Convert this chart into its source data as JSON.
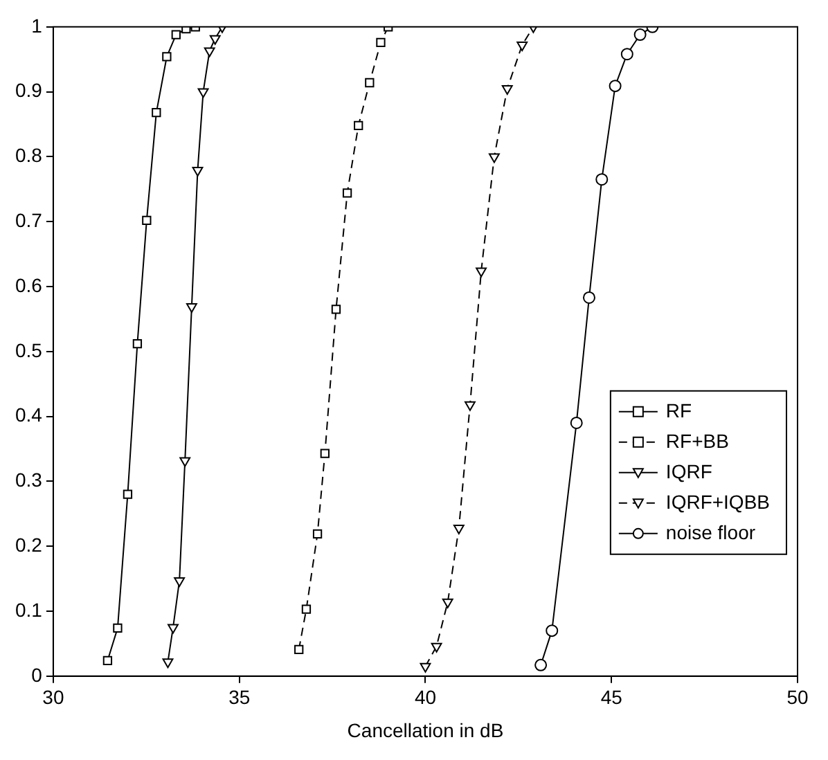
{
  "chart_data": {
    "type": "line",
    "xlabel": "Cancellation in dB",
    "xlim": [
      30,
      50
    ],
    "xticks": [
      30,
      35,
      40,
      45,
      50
    ],
    "ylim": [
      0,
      1
    ],
    "yticks": [
      0,
      0.1,
      0.2,
      0.3,
      0.4,
      0.5,
      0.6,
      0.7,
      0.8,
      0.9,
      1
    ],
    "grid": false,
    "legend": "bottom right",
    "series": [
      {
        "name": "RF",
        "color": "#000000",
        "marker": "square",
        "line_style": "solid",
        "x": [
          31.46,
          31.73,
          32.0,
          32.26,
          32.51,
          32.77,
          33.05,
          33.3,
          33.57,
          33.82
        ],
        "values": [
          0.024,
          0.074,
          0.28,
          0.512,
          0.702,
          0.868,
          0.954,
          0.988,
          0.997,
          1.0
        ]
      },
      {
        "name": "RF+BB",
        "color": "#000000",
        "marker": "square",
        "line_style": "dashed",
        "x": [
          36.6,
          36.8,
          37.1,
          37.3,
          37.6,
          37.9,
          38.2,
          38.5,
          38.8,
          39.0
        ],
        "values": [
          0.041,
          0.103,
          0.219,
          0.343,
          0.565,
          0.744,
          0.848,
          0.914,
          0.976,
          1.0
        ]
      },
      {
        "name": "IQRF",
        "color": "#000000",
        "marker": "triangle",
        "line_style": "solid",
        "x": [
          33.08,
          33.22,
          33.39,
          33.54,
          33.72,
          33.88,
          34.03,
          34.2,
          34.35,
          34.54
        ],
        "values": [
          0.022,
          0.075,
          0.147,
          0.332,
          0.569,
          0.779,
          0.9,
          0.963,
          0.982,
          1.0
        ]
      },
      {
        "name": "IQRF+IQBB",
        "color": "#000000",
        "marker": "triangle",
        "line_style": "dashed",
        "x": [
          40.0,
          40.3,
          40.6,
          40.9,
          41.2,
          41.5,
          41.85,
          42.2,
          42.6,
          42.9
        ],
        "values": [
          0.015,
          0.046,
          0.114,
          0.228,
          0.418,
          0.624,
          0.8,
          0.905,
          0.972,
          1.0
        ]
      },
      {
        "name": "noise floor",
        "color": "#000000",
        "marker": "circle",
        "line_style": "solid",
        "x": [
          43.1,
          43.4,
          44.06,
          44.4,
          44.74,
          45.1,
          45.42,
          45.77,
          46.1
        ],
        "values": [
          0.017,
          0.07,
          0.39,
          0.583,
          0.765,
          0.909,
          0.958,
          0.988,
          1.0
        ]
      }
    ]
  }
}
